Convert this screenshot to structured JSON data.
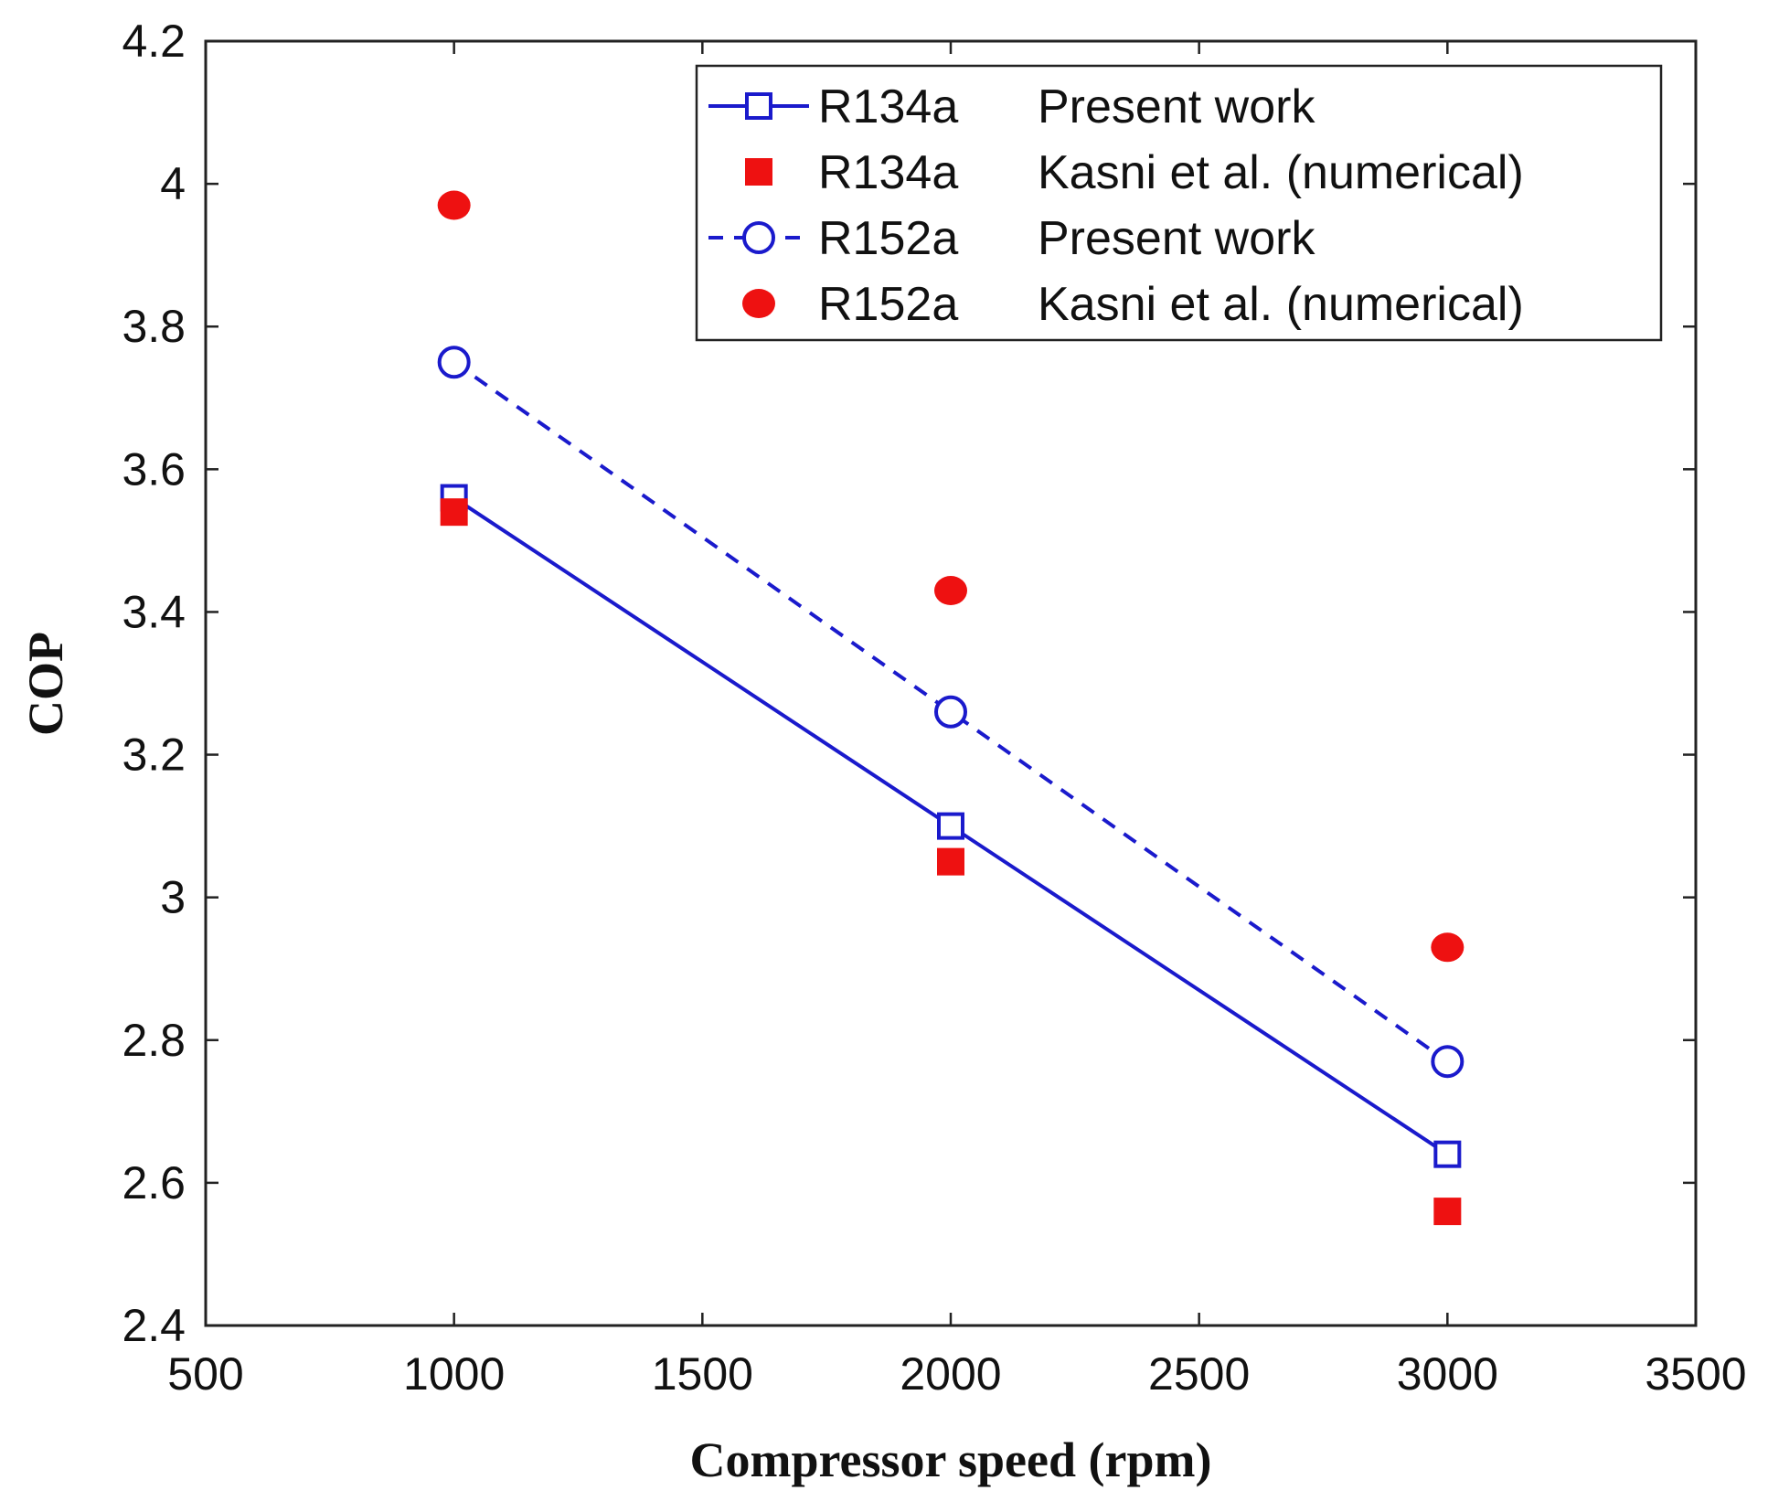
{
  "chart_data": {
    "type": "line",
    "xlabel": "Compressor speed (rpm)",
    "ylabel": "COP",
    "xlim": [
      500,
      3500
    ],
    "ylim": [
      2.4,
      4.2
    ],
    "xticks": [
      500,
      1000,
      1500,
      2000,
      2500,
      3000,
      3500
    ],
    "xtick_labels": [
      "500",
      "1000",
      "1500",
      "2000",
      "2500",
      "3000",
      "3500"
    ],
    "yticks": [
      2.4,
      2.6,
      2.8,
      3.0,
      3.2,
      3.4,
      3.6,
      3.8,
      4.0,
      4.2
    ],
    "ytick_labels": [
      "2.4",
      "2.6",
      "2.8",
      "3",
      "3.2",
      "3.4",
      "3.6",
      "3.8",
      "4",
      "4.2"
    ],
    "grid": false,
    "legend_position": "top-right",
    "series": [
      {
        "refrigerant": "R134a",
        "source": "Present work",
        "color": "#1a1acc",
        "line": "solid",
        "marker": "open-square",
        "x": [
          1000,
          2000,
          3000
        ],
        "y": [
          3.56,
          3.1,
          2.64
        ]
      },
      {
        "refrigerant": "R134a",
        "source": "Kasni et al. (numerical)",
        "color": "#ee1111",
        "line": "none",
        "marker": "filled-square",
        "x": [
          1000,
          2000,
          3000
        ],
        "y": [
          3.54,
          3.05,
          2.56
        ]
      },
      {
        "refrigerant": "R152a",
        "source": "Present work",
        "color": "#1a1acc",
        "line": "dashed",
        "marker": "open-circle",
        "x": [
          1000,
          2000,
          3000
        ],
        "y": [
          3.75,
          3.26,
          2.77
        ]
      },
      {
        "refrigerant": "R152a",
        "source": "Kasni et al. (numerical)",
        "color": "#ee1111",
        "line": "none",
        "marker": "filled-circle",
        "x": [
          1000,
          2000,
          3000
        ],
        "y": [
          3.97,
          3.43,
          2.93
        ]
      }
    ]
  }
}
